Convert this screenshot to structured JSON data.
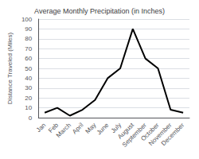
{
  "chart_data": {
    "type": "line",
    "title": "Average Monthly Precipitation (in Inches)",
    "ylabel": "Distance Traveled (Miles)",
    "categories": [
      "Jan",
      "Feb",
      "March",
      "April",
      "May",
      "June",
      "July",
      "August",
      "September",
      "October",
      "November",
      "December"
    ],
    "values": [
      5,
      10,
      2,
      8,
      18,
      40,
      50,
      90,
      60,
      50,
      8,
      5
    ],
    "color": "#000000",
    "ylim": [
      0,
      100
    ],
    "yticks": [
      0,
      10,
      20,
      30,
      40,
      50,
      60,
      70,
      80,
      90,
      100
    ],
    "grid": true
  }
}
